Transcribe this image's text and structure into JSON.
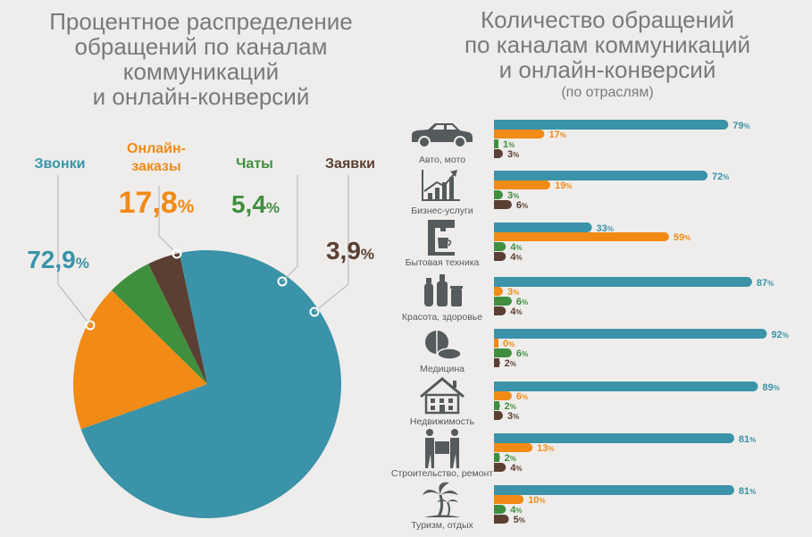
{
  "left_title": [
    "Процентное распределение",
    "обращений по каналам",
    "коммуникаций",
    "и онлайн-конверсий"
  ],
  "right_title": [
    "Количество обращений",
    "по каналам коммуникаций",
    "и онлайн-конверсий"
  ],
  "right_subtitle": "(по отраслям)",
  "colors": {
    "calls": "#3a93a8",
    "orders": "#f28a16",
    "chats": "#3f8f3f",
    "requests": "#5b3f32",
    "label_grey": "#555a5c"
  },
  "chart_data": [
    {
      "type": "pie",
      "title": "Процентное распределение обращений по каналам коммуникаций и онлайн-конверсий",
      "slices": [
        {
          "label": "Звонки",
          "value": 72.9,
          "display": "72,9",
          "color": "#3a93a8"
        },
        {
          "label": "Онлайн-заказы",
          "label_lines": [
            "Онлайн-",
            "заказы"
          ],
          "value": 17.8,
          "display": "17,8",
          "color": "#f28a16"
        },
        {
          "label": "Чаты",
          "value": 5.4,
          "display": "5,4",
          "color": "#3f8f3f"
        },
        {
          "label": "Заявки",
          "value": 3.9,
          "display": "3,9",
          "color": "#5b3f32"
        }
      ],
      "unit": "%"
    },
    {
      "type": "bar",
      "orientation": "horizontal",
      "title": "Количество обращений по каналам коммуникаций и онлайн-конверсий (по отраслям)",
      "unit": "%",
      "categories": [
        "Авто, мото",
        "Бизнес-услуги",
        "Бытовая техника",
        "Красота, здоровье",
        "Медицина",
        "Недвижимость",
        "Строительство, ремонт",
        "Туризм, отдых"
      ],
      "icons": [
        "car-icon",
        "growth-chart-icon",
        "coffee-machine-icon",
        "cosmetics-icon",
        "pills-icon",
        "house-icon",
        "movers-icon",
        "palm-tree-icon"
      ],
      "series": [
        {
          "name": "Звонки",
          "color": "#3a93a8",
          "values": [
            79,
            72,
            33,
            87,
            92,
            89,
            81,
            81
          ]
        },
        {
          "name": "Онлайн-заказы",
          "color": "#f28a16",
          "values": [
            17,
            19,
            59,
            3,
            0,
            6,
            13,
            10
          ]
        },
        {
          "name": "Чаты",
          "color": "#3f8f3f",
          "values": [
            1,
            3,
            4,
            6,
            6,
            2,
            2,
            4
          ]
        },
        {
          "name": "Заявки",
          "color": "#5b3f32",
          "values": [
            3,
            6,
            4,
            4,
            2,
            3,
            4,
            5
          ]
        }
      ]
    }
  ]
}
